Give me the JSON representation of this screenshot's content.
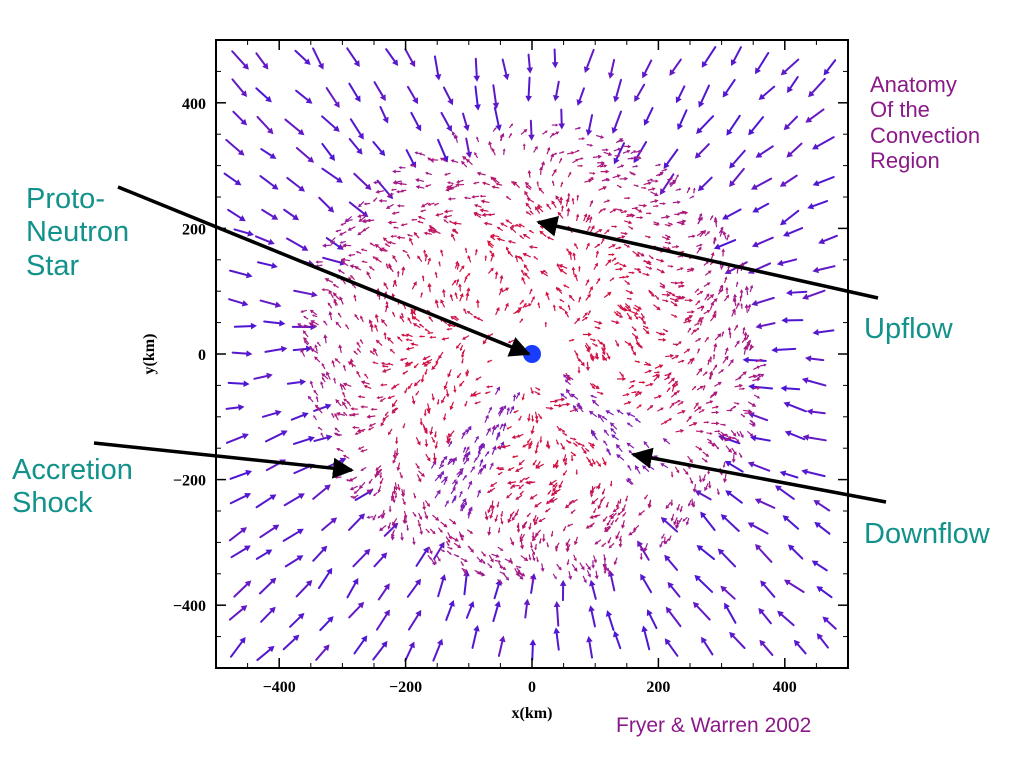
{
  "chart_data": {
    "type": "vector-field",
    "xlabel": "x(km)",
    "ylabel": "y(km)",
    "xlim": [
      -500,
      500
    ],
    "ylim": [
      -500,
      500
    ],
    "x_ticks": [
      -400,
      -200,
      0,
      200,
      400
    ],
    "y_ticks": [
      -400,
      -200,
      0,
      200,
      400
    ],
    "x_tick_labels": [
      "−400",
      "−200",
      "0",
      "200",
      "400"
    ],
    "y_tick_labels": [
      "−400",
      "−200",
      "0",
      "200",
      "400"
    ],
    "colors": {
      "infall": "#4b16d6",
      "hot": "#d8103a",
      "mixed": "#8d1ea8",
      "core": "#1a3cff"
    },
    "title_annotation": "Anatomy\nOf the\nConvection\nRegion",
    "credit": "Fryer & Warren 2002",
    "annotations": [
      {
        "name": "proto-neutron-star",
        "text": "Proto-\nNeutron\nStar",
        "target": [
          -5,
          0
        ]
      },
      {
        "name": "upflow",
        "text": "Upflow",
        "target": [
          10,
          210
        ]
      },
      {
        "name": "accretion-shock",
        "text": "Accretion\nShock",
        "target": [
          -285,
          -185
        ]
      },
      {
        "name": "downflow",
        "text": "Downflow",
        "target": [
          160,
          -160
        ]
      }
    ]
  }
}
